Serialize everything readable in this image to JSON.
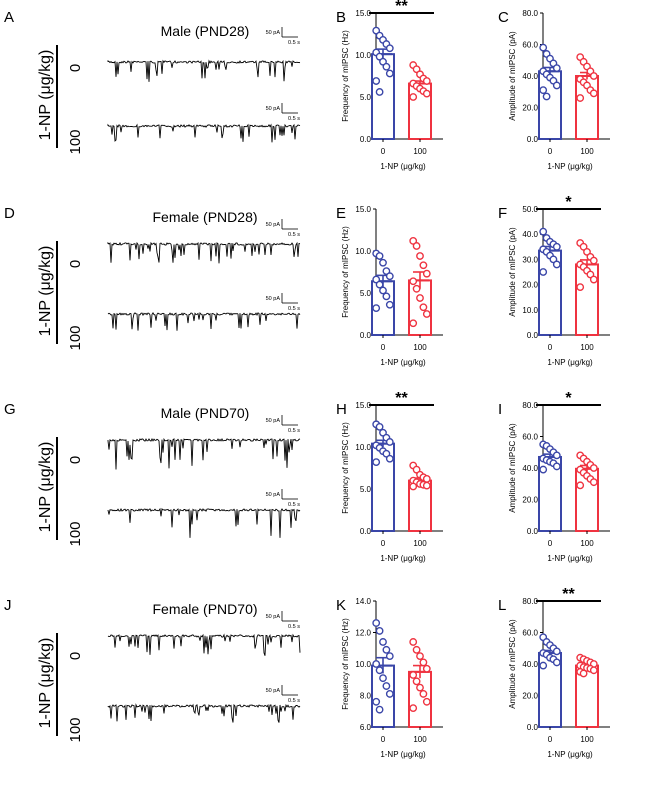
{
  "colors": {
    "control": "#3a46a8",
    "treated": "#ef3340",
    "axis": "#000000",
    "trace": "#000000"
  },
  "rows": [
    {
      "panel_letters": [
        "A",
        "B",
        "C"
      ],
      "title": "Male (PND28)",
      "ylabel_group": "1-NP (μg/kg)",
      "dose_labels": [
        "0",
        "100"
      ],
      "scale_bar_amp": "50 pA",
      "scale_bar_time": "0.5 s"
    },
    {
      "panel_letters": [
        "D",
        "E",
        "F"
      ],
      "title": "Female (PND28)",
      "ylabel_group": "1-NP (μg/kg)",
      "dose_labels": [
        "0",
        "100"
      ],
      "scale_bar_amp": "50 pA",
      "scale_bar_time": "0.5 s"
    },
    {
      "panel_letters": [
        "G",
        "H",
        "I"
      ],
      "title": "Male (PND70)",
      "ylabel_group": "1-NP (μg/kg)",
      "dose_labels": [
        "0",
        "100"
      ],
      "scale_bar_amp": "50 pA",
      "scale_bar_time": "0.5 s"
    },
    {
      "panel_letters": [
        "J",
        "K",
        "L"
      ],
      "title": "Female (PND70)",
      "ylabel_group": "1-NP (μg/kg)",
      "dose_labels": [
        "0",
        "100"
      ],
      "scale_bar_amp": "50 pA",
      "scale_bar_time": "0.5 s"
    }
  ],
  "chart_data": [
    {
      "panel": "B",
      "type": "bar",
      "categories": [
        "0",
        "100"
      ],
      "ylabel": "Frequency of mIPSC (Hz)",
      "xlabel": "1-NP (μg/kg)",
      "ylim": [
        0,
        15
      ],
      "yticks": [
        "0.0",
        "5.0",
        "10.0",
        "15.0"
      ],
      "values": [
        10.1,
        6.6
      ],
      "sem": [
        0.6,
        0.3
      ],
      "significance": "**",
      "points": [
        [
          12.9,
          12.3,
          11.8,
          11.3,
          10.8,
          10.3,
          9.8,
          9.2,
          8.6,
          7.8,
          6.9,
          5.6
        ],
        [
          8.8,
          8.3,
          7.7,
          7.2,
          6.9,
          6.6,
          6.3,
          6.0,
          5.7,
          5.4,
          5.0
        ]
      ]
    },
    {
      "panel": "C",
      "type": "bar",
      "categories": [
        "0",
        "100"
      ],
      "ylabel": "Amplitude of mIPSC (pA)",
      "xlabel": "1-NP (μg/kg)",
      "ylim": [
        0,
        80
      ],
      "yticks": [
        "0.0",
        "20.0",
        "40.0",
        "60.0",
        "80.0"
      ],
      "values": [
        43,
        40
      ],
      "sem": [
        2.4,
        2.2
      ],
      "significance": "",
      "points": [
        [
          58,
          54,
          51,
          48,
          45,
          43,
          41,
          39,
          37,
          34,
          31,
          27
        ],
        [
          52,
          49,
          46,
          43,
          40,
          38,
          36,
          34,
          31,
          29,
          26
        ]
      ]
    },
    {
      "panel": "E",
      "type": "bar",
      "categories": [
        "0",
        "100"
      ],
      "ylabel": "Frequency of mIPSC (Hz)",
      "xlabel": "1-NP (μg/kg)",
      "ylim": [
        0,
        15
      ],
      "yticks": [
        "0.0",
        "5.0",
        "10.0",
        "15.0"
      ],
      "values": [
        6.4,
        6.5
      ],
      "sem": [
        0.7,
        1.0
      ],
      "significance": "",
      "points": [
        [
          9.7,
          9.4,
          8.6,
          7.6,
          7.0,
          6.6,
          6.0,
          5.3,
          4.6,
          3.6,
          3.2
        ],
        [
          11.2,
          10.6,
          9.4,
          8.3,
          7.3,
          6.4,
          5.5,
          4.4,
          3.3,
          2.5,
          1.4
        ]
      ]
    },
    {
      "panel": "F",
      "type": "bar",
      "categories": [
        "0",
        "100"
      ],
      "ylabel": "Amplitude of mIPSC (pA)",
      "xlabel": "1-NP (μg/kg)",
      "ylim": [
        0,
        50
      ],
      "yticks": [
        "0.0",
        "10.0",
        "20.0",
        "30.0",
        "40.0",
        "50.0"
      ],
      "values": [
        33.5,
        28
      ],
      "sem": [
        1.6,
        1.8
      ],
      "significance": "*",
      "points": [
        [
          41,
          38.5,
          37,
          36,
          35,
          34,
          33,
          31.5,
          30,
          28,
          25
        ],
        [
          36.5,
          35,
          33,
          31,
          29.5,
          28,
          27,
          25.5,
          24,
          22,
          19
        ]
      ]
    },
    {
      "panel": "H",
      "type": "bar",
      "categories": [
        "0",
        "100"
      ],
      "ylabel": "Frequency of mIPSC (Hz)",
      "xlabel": "1-NP (μg/kg)",
      "ylim": [
        0,
        15
      ],
      "yticks": [
        "0.0",
        "5.0",
        "10.0",
        "15.0"
      ],
      "values": [
        10.4,
        6.0
      ],
      "sem": [
        0.4,
        0.3
      ],
      "significance": "**",
      "points": [
        [
          12.7,
          12.4,
          11.7,
          11.1,
          10.6,
          10.2,
          9.9,
          9.5,
          9.2,
          8.6,
          8.2
        ],
        [
          7.8,
          7.3,
          6.7,
          6.4,
          6.2,
          6.0,
          5.8,
          5.6,
          5.5,
          5.4,
          5.3
        ]
      ]
    },
    {
      "panel": "I",
      "type": "bar",
      "categories": [
        "0",
        "100"
      ],
      "ylabel": "Amplitude of mIPSC (pA)",
      "xlabel": "1-NP (μg/kg)",
      "ylim": [
        0,
        80
      ],
      "yticks": [
        "0.0",
        "20.0",
        "40.0",
        "60.0",
        "80.0"
      ],
      "values": [
        47,
        39.5
      ],
      "sem": [
        1.8,
        2.1
      ],
      "significance": "*",
      "points": [
        [
          55,
          54,
          52,
          50,
          48,
          46,
          45,
          44,
          43,
          41,
          39
        ],
        [
          48,
          46,
          44,
          42,
          40,
          39,
          37,
          35,
          33,
          31,
          29
        ]
      ]
    },
    {
      "panel": "K",
      "type": "bar",
      "categories": [
        "0",
        "100"
      ],
      "ylabel": "Frequency of mIPSC (Hz)",
      "xlabel": "1-NP (μg/kg)",
      "ylim": [
        6,
        14
      ],
      "yticks": [
        "6.0",
        "8.0",
        "10.0",
        "12.0",
        "14.0"
      ],
      "values": [
        9.9,
        9.5
      ],
      "sem": [
        0.5,
        0.4
      ],
      "significance": "",
      "points": [
        [
          12.6,
          12.1,
          11.4,
          10.9,
          10.5,
          10.0,
          9.6,
          9.1,
          8.6,
          8.1,
          7.6,
          7.1
        ],
        [
          11.4,
          10.9,
          10.5,
          10.1,
          9.7,
          9.3,
          8.9,
          8.5,
          8.1,
          7.6,
          7.2
        ]
      ]
    },
    {
      "panel": "L",
      "type": "bar",
      "categories": [
        "0",
        "100"
      ],
      "ylabel": "Amplitude of mIPSC (pA)",
      "xlabel": "1-NP (μg/kg)",
      "ylim": [
        0,
        80
      ],
      "yticks": [
        "0.0",
        "20.0",
        "40.0",
        "60.0",
        "80.0"
      ],
      "values": [
        47,
        39
      ],
      "sem": [
        1.6,
        0.8
      ],
      "significance": "**",
      "points": [
        [
          57,
          54,
          52,
          50,
          48,
          47,
          46,
          44,
          43,
          41,
          39
        ],
        [
          44,
          43,
          42,
          41,
          40,
          39,
          38,
          37.5,
          37,
          36,
          35,
          34
        ]
      ]
    }
  ]
}
